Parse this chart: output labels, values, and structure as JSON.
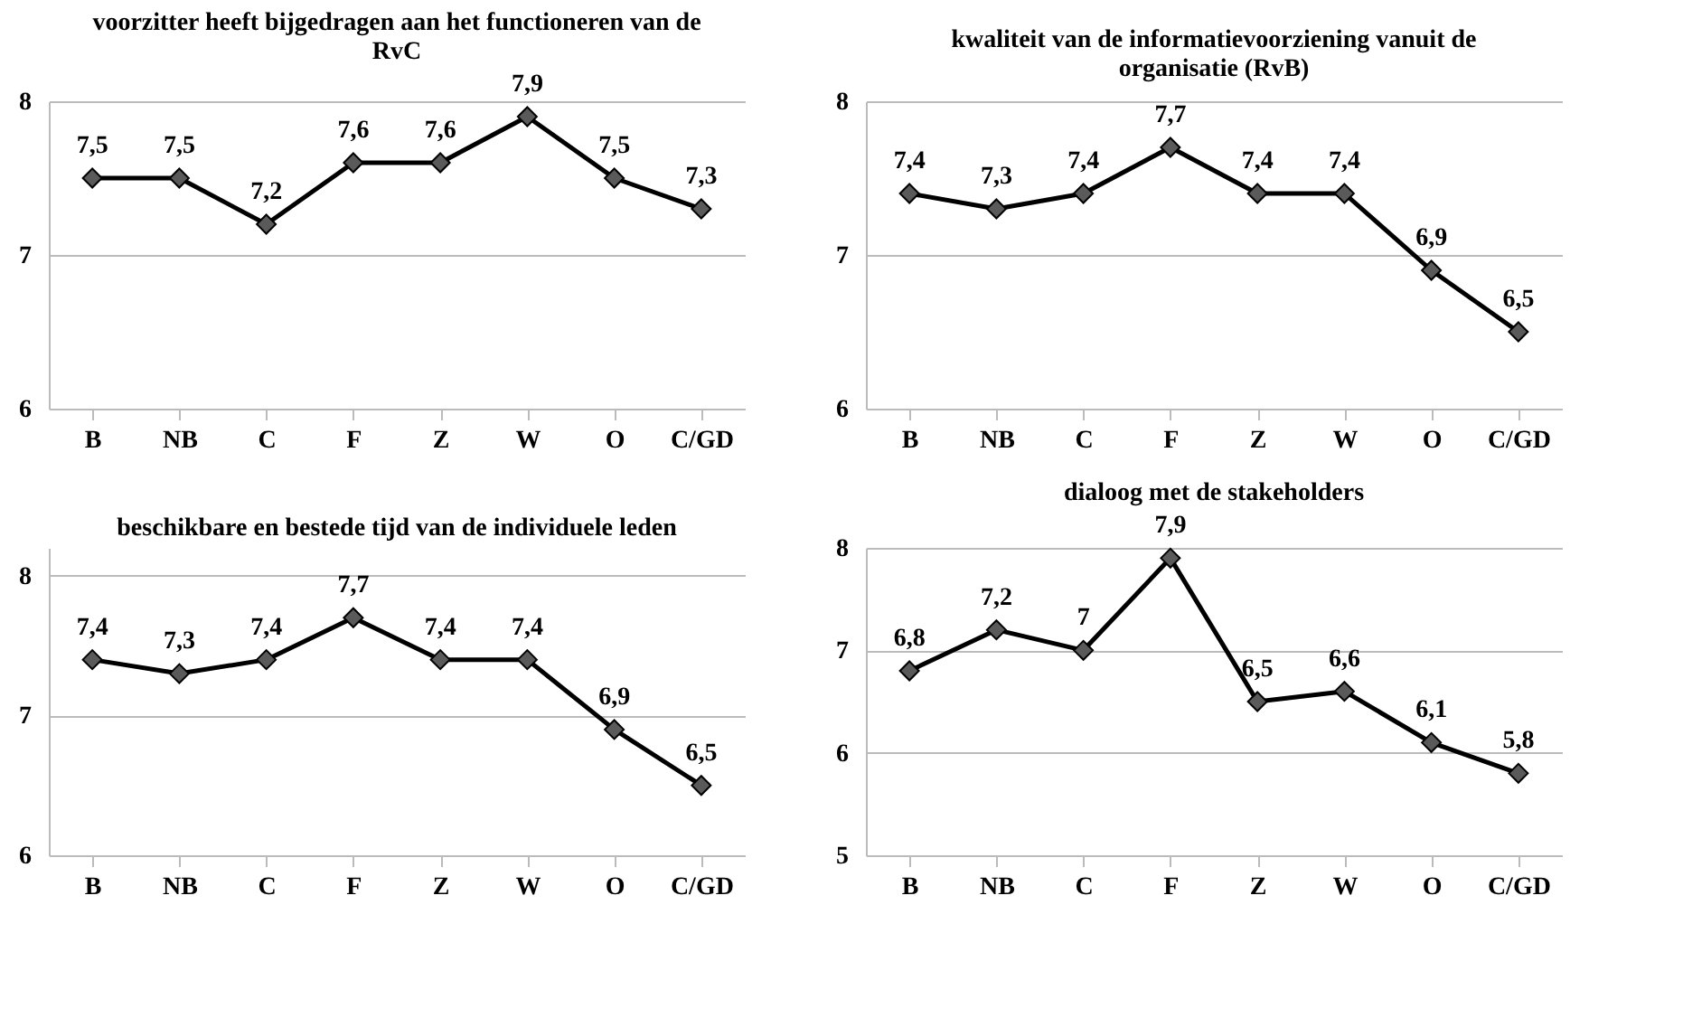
{
  "chart_data": [
    {
      "type": "line",
      "title": "voorzitter heeft bijgedragen aan het functioneren van de RvC",
      "categories": [
        "B",
        "NB",
        "C",
        "F",
        "Z",
        "W",
        "O",
        "C/GD"
      ],
      "series": [
        {
          "color": "#000000",
          "values": [
            7.5,
            7.5,
            7.2,
            7.6,
            7.6,
            7.9,
            7.5,
            7.3
          ],
          "value_labels": [
            "7,5",
            "7,5",
            "7,2",
            "7,6",
            "7,6",
            "7,9",
            "7,5",
            "7,3"
          ]
        }
      ],
      "ylim": [
        6,
        8
      ],
      "yticks": [
        6,
        7,
        8
      ],
      "grid": "y",
      "marker": "diamond",
      "line_style": "solid"
    },
    {
      "type": "line",
      "title": "kwaliteit van de informatievoorziening vanuit de organisatie (RvB)",
      "categories": [
        "B",
        "NB",
        "C",
        "F",
        "Z",
        "W",
        "O",
        "C/GD"
      ],
      "series": [
        {
          "color": "#000000",
          "values": [
            7.4,
            7.3,
            7.4,
            7.7,
            7.4,
            7.4,
            6.9,
            6.5
          ],
          "value_labels": [
            "7,4",
            "7,3",
            "7,4",
            "7,7",
            "7,4",
            "7,4",
            "6,9",
            "6,5"
          ]
        }
      ],
      "ylim": [
        6,
        8
      ],
      "yticks": [
        6,
        7,
        8
      ],
      "grid": "y",
      "marker": "diamond",
      "line_style": "solid"
    },
    {
      "type": "line",
      "title": "beschikbare en bestede tijd van de individuele leden",
      "categories": [
        "B",
        "NB",
        "C",
        "F",
        "Z",
        "W",
        "O",
        "C/GD"
      ],
      "series": [
        {
          "color": "#000000",
          "values": [
            7.4,
            7.3,
            7.4,
            7.7,
            7.4,
            7.4,
            6.9,
            6.5
          ],
          "value_labels": [
            "7,4",
            "7,3",
            "7,4",
            "7,7",
            "7,4",
            "7,4",
            "6,9",
            "6,5"
          ]
        }
      ],
      "ylim": [
        6,
        8.2
      ],
      "yticks": [
        6,
        7,
        8
      ],
      "grid": "y",
      "marker": "diamond",
      "line_style": "solid"
    },
    {
      "type": "line",
      "title": "dialoog met de stakeholders",
      "categories": [
        "B",
        "NB",
        "C",
        "F",
        "Z",
        "W",
        "O",
        "C/GD"
      ],
      "series": [
        {
          "color": "#000000",
          "values": [
            6.8,
            7.2,
            7.0,
            7.9,
            6.5,
            6.6,
            6.1,
            5.8
          ],
          "value_labels": [
            "6,8",
            "7,2",
            "7",
            "7,9",
            "6,5",
            "6,6",
            "6,1",
            "5,8"
          ]
        }
      ],
      "ylim": [
        5,
        8
      ],
      "yticks": [
        5,
        6,
        7,
        8
      ],
      "grid": "y",
      "marker": "diamond",
      "line_style": "solid"
    }
  ]
}
